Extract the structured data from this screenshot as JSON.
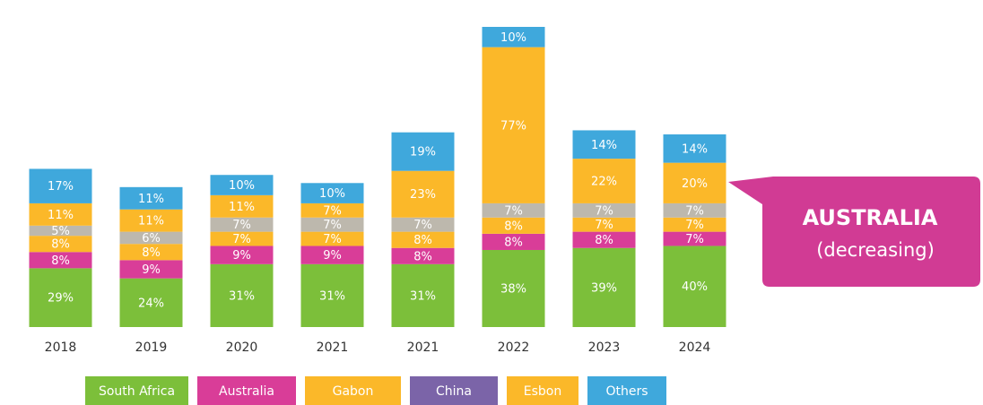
{
  "chart_data": {
    "type": "stacked_bar",
    "categories": [
      "2018",
      "2019",
      "2020",
      "2021",
      "2021",
      "2022",
      "2023",
      "2024"
    ],
    "series": [
      {
        "name": "South Africa",
        "color": "#7cbf3a",
        "values": [
          29,
          24,
          31,
          31,
          31,
          38,
          39,
          40
        ]
      },
      {
        "name": "Australia",
        "color": "#d93d98",
        "values": [
          8,
          9,
          9,
          9,
          8,
          8,
          8,
          7
        ]
      },
      {
        "name": "Gabon",
        "color": "#fbb829",
        "values": [
          8,
          8,
          7,
          7,
          8,
          8,
          7,
          7
        ]
      },
      {
        "name": "China",
        "color": "#bdb8ad",
        "legend_color": "#7b64a8",
        "values": [
          5,
          6,
          7,
          7,
          7,
          7,
          7,
          7
        ]
      },
      {
        "name": "Esbon",
        "color": "#fbb829",
        "values": [
          11,
          11,
          11,
          7,
          23,
          77,
          22,
          20
        ]
      },
      {
        "name": "Others",
        "color": "#3fa8dc",
        "values": [
          17,
          11,
          10,
          10,
          19,
          10,
          14,
          14
        ]
      }
    ],
    "value_labels": [
      [
        "29%",
        "24%",
        "31%",
        "31%",
        "31%",
        "38%",
        "39%",
        "40%"
      ],
      [
        "8%",
        "9%",
        "9%",
        "9%",
        "8%",
        "8%",
        "8%",
        "7%"
      ],
      [
        "8%",
        "8%",
        "7%",
        "7%",
        "8%",
        "8%",
        "7%",
        "7%"
      ],
      [
        "5%",
        "6%",
        "7%",
        "7%",
        "7%",
        "7%",
        "7%",
        "7%"
      ],
      [
        "11%",
        "11%",
        "11%",
        "7%",
        "23%",
        "77%",
        "22%",
        "20%"
      ],
      [
        "17%",
        "11%",
        "10%",
        "10%",
        "19%",
        "10%",
        "14%",
        "14%"
      ]
    ],
    "annotation": {
      "title": "AUSTRALIA",
      "text": "(decreasing)"
    }
  }
}
